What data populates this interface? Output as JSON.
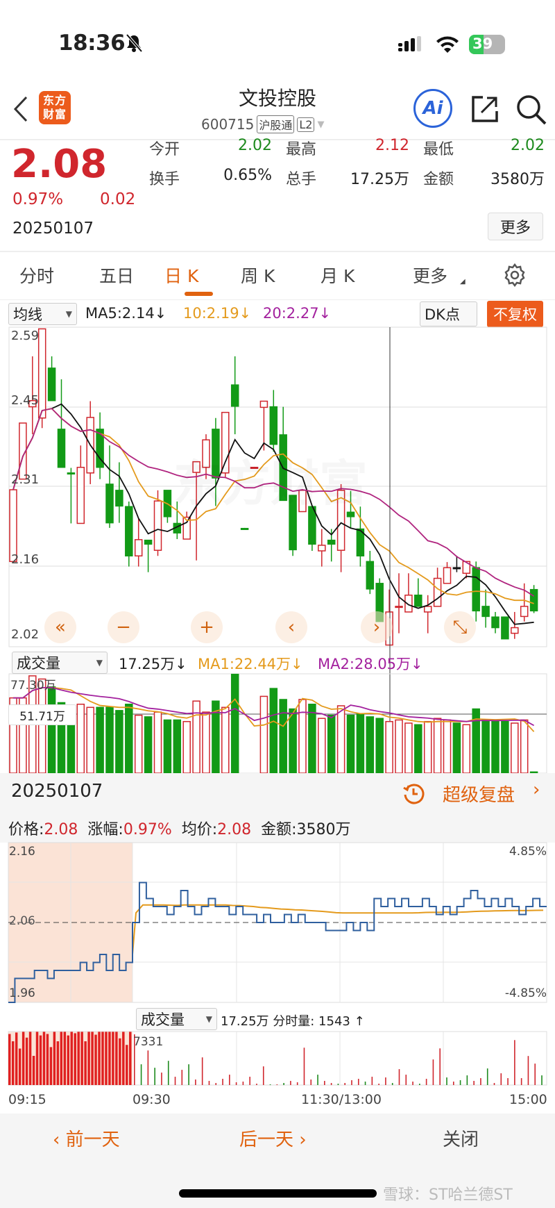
{
  "status_bar": {
    "time": "18:36",
    "battery": "39",
    "icons": [
      "bell-slash-icon",
      "signal-icon",
      "wifi-icon",
      "battery-charging-icon"
    ]
  },
  "header": {
    "logo": "东方财富",
    "title": "文投控股",
    "code": "600715",
    "badges": [
      "沪股通",
      "L2"
    ],
    "ai_label": "Ai"
  },
  "quote": {
    "price": "2.08",
    "change_pct": "0.97%",
    "change": "0.02",
    "date": "20250107",
    "stats": [
      {
        "label": "今开",
        "value": "2.02",
        "color": "green"
      },
      {
        "label": "最高",
        "value": "2.12",
        "color": "red"
      },
      {
        "label": "最低",
        "value": "2.02",
        "color": "green"
      },
      {
        "label": "换手",
        "value": "0.65%",
        "color": "black"
      },
      {
        "label": "总手",
        "value": "17.25万",
        "color": "black"
      },
      {
        "label": "金额",
        "value": "3580万",
        "color": "black"
      }
    ],
    "more_label": "更多"
  },
  "tabs": [
    {
      "label": "分时"
    },
    {
      "label": "五日"
    },
    {
      "label": "日 K",
      "active": true
    },
    {
      "label": "周 K"
    },
    {
      "label": "月 K"
    },
    {
      "label": "更多"
    }
  ],
  "ma_bar": {
    "selector": "均线",
    "ma5": "MA5:2.14↓",
    "ma10": "10:2.19↓",
    "ma20": "20:2.27↓",
    "dk": "DK点",
    "adjust": "不复权"
  },
  "kline": {
    "watermark": "东方财富",
    "y_labels": [
      "2.59",
      "2.45",
      "2.31",
      "2.16",
      "2.02"
    ],
    "ylim": [
      2.02,
      2.59
    ],
    "candles": [
      [
        2.172,
        2.3,
        2.172,
        2.3
      ],
      [
        2.319,
        2.419,
        2.319,
        2.419
      ],
      [
        2.448,
        2.538,
        2.399,
        2.459
      ],
      [
        2.428,
        2.587,
        2.41,
        2.587
      ],
      [
        2.517,
        2.538,
        2.459,
        2.459
      ],
      [
        2.408,
        2.497,
        2.34,
        2.34
      ],
      [
        2.33,
        2.339,
        2.24,
        2.33
      ],
      [
        2.24,
        2.379,
        2.24,
        2.34
      ],
      [
        2.33,
        2.458,
        2.31,
        2.429
      ],
      [
        2.408,
        2.438,
        2.319,
        2.34
      ],
      [
        2.31,
        2.379,
        2.232,
        2.241
      ],
      [
        2.299,
        2.349,
        2.241,
        2.271
      ],
      [
        2.27,
        2.279,
        2.163,
        2.182
      ],
      [
        2.182,
        2.248,
        2.163,
        2.211
      ],
      [
        2.21,
        2.21,
        2.153,
        2.203
      ],
      [
        2.192,
        2.299,
        2.182,
        2.28
      ],
      [
        2.299,
        2.299,
        2.241,
        2.252
      ],
      [
        2.24,
        2.279,
        2.212,
        2.223
      ],
      [
        2.212,
        2.261,
        2.212,
        2.251
      ],
      [
        2.331,
        2.35,
        2.174,
        2.35
      ],
      [
        2.34,
        2.399,
        2.319,
        2.389
      ],
      [
        2.408,
        2.428,
        2.271,
        2.321
      ],
      [
        2.33,
        2.438,
        2.321,
        2.438
      ],
      [
        2.487,
        2.538,
        2.399,
        2.449
      ],
      [
        2.231,
        2.232,
        2.23,
        2.231
      ],
      [
        2.34,
        2.341,
        2.339,
        2.34
      ],
      [
        2.447,
        2.458,
        2.37,
        2.458
      ],
      [
        2.448,
        2.478,
        2.368,
        2.381
      ],
      [
        2.398,
        2.448,
        2.281,
        2.281
      ],
      [
        2.29,
        2.29,
        2.182,
        2.193
      ],
      [
        2.261,
        2.299,
        2.261,
        2.299
      ],
      [
        2.27,
        2.27,
        2.191,
        2.203
      ],
      [
        2.191,
        2.23,
        2.163,
        2.201
      ],
      [
        2.21,
        2.23,
        2.172,
        2.203
      ],
      [
        2.192,
        2.31,
        2.153,
        2.299
      ],
      [
        2.26,
        2.298,
        2.232,
        2.252
      ],
      [
        2.23,
        2.27,
        2.163,
        2.182
      ],
      [
        2.172,
        2.191,
        2.114,
        2.123
      ],
      [
        2.133,
        2.142,
        2.065,
        2.065
      ],
      [
        2.023,
        2.122,
        2.023,
        2.082
      ],
      [
        2.092,
        2.151,
        2.044,
        2.092
      ],
      [
        2.082,
        2.151,
        2.082,
        2.112
      ],
      [
        2.112,
        2.142,
        2.092,
        2.092
      ],
      [
        2.082,
        2.112,
        2.044,
        2.092
      ],
      [
        2.092,
        2.161,
        2.092,
        2.142
      ],
      [
        2.133,
        2.171,
        2.133,
        2.161
      ],
      [
        2.161,
        2.182,
        2.153,
        2.161
      ],
      [
        2.151,
        2.172,
        2.142,
        2.172
      ],
      [
        2.161,
        2.172,
        2.065,
        2.084
      ],
      [
        2.092,
        2.122,
        2.054,
        2.074
      ],
      [
        2.073,
        2.082,
        2.044,
        2.054
      ],
      [
        2.073,
        2.073,
        2.034,
        2.034
      ],
      [
        2.044,
        2.082,
        2.034,
        2.054
      ],
      [
        2.074,
        2.133,
        2.065,
        2.092
      ],
      [
        2.122,
        2.13,
        2.08,
        2.084
      ]
    ],
    "nav_buttons": [
      "«",
      "−",
      "+",
      "‹",
      "›",
      "⤡"
    ],
    "colors": {
      "up": "#d0262d",
      "down": "#129a16",
      "ma5": "#111111",
      "ma10": "#e49a1c",
      "ma20": "#b0247f"
    }
  },
  "volume": {
    "selector": "成交量",
    "current": "17.25万↓",
    "ma1": "MA1:22.44万↓",
    "ma2": "MA2:28.05万↓",
    "top_label": "77.30万",
    "cursor_label": "51.71万",
    "values": [
      62,
      62,
      76,
      74,
      69,
      59,
      57,
      58,
      56,
      56,
      56,
      54,
      58,
      51,
      50,
      53,
      48,
      48,
      47,
      60,
      53,
      60,
      56,
      77,
      14,
      14,
      63,
      68,
      61,
      55,
      61,
      58,
      49,
      51,
      57,
      51,
      52,
      50,
      49,
      47,
      48,
      46,
      45,
      47,
      49,
      48,
      46,
      45,
      55,
      48,
      47,
      47,
      46,
      48,
      15
    ]
  },
  "intraday": {
    "date": "20250107",
    "replay_label": "超级复盘",
    "info": [
      {
        "label": "价格:",
        "value": "2.08"
      },
      {
        "label": "涨幅:",
        "value": "0.97%"
      },
      {
        "label": "均价:",
        "value": "2.08"
      },
      {
        "label": "金额:",
        "value": "3580万",
        "plain": true
      }
    ],
    "y_left": [
      "2.16",
      "2.06",
      "1.96"
    ],
    "y_right": [
      "4.85%",
      "-4.85%"
    ],
    "prev_close": 2.06,
    "ylim": [
      1.96,
      2.16
    ],
    "premarket": [
      1.96,
      1.99,
      1.99,
      1.99,
      2.0,
      2.0,
      1.99,
      2.0,
      2.0,
      2.0,
      2.0,
      2.01,
      2.0,
      2.01,
      2.02,
      2.0,
      2.02,
      2.0,
      2.01
    ],
    "prices": [
      2.06,
      2.11,
      2.09,
      2.08,
      2.08,
      2.07,
      2.08,
      2.1,
      2.08,
      2.07,
      2.08,
      2.09,
      2.08,
      2.08,
      2.07,
      2.08,
      2.07,
      2.07,
      2.06,
      2.07,
      2.06,
      2.06,
      2.07,
      2.06,
      2.07,
      2.06,
      2.06,
      2.06,
      2.05,
      2.05,
      2.05,
      2.06,
      2.05,
      2.06,
      2.05,
      2.09,
      2.08,
      2.09,
      2.08,
      2.09,
      2.08,
      2.08,
      2.09,
      2.08,
      2.07,
      2.08,
      2.07,
      2.08,
      2.09,
      2.1,
      2.09,
      2.08,
      2.09,
      2.08,
      2.09,
      2.08,
      2.07,
      2.08,
      2.09,
      2.08
    ],
    "vol_selector": "成交量",
    "vol_text": "17.25万 分时量: 1543 ↑",
    "vol_max_label": "7331",
    "premarket_volumes": [
      7000,
      6000,
      7200,
      5000,
      7300,
      6500,
      7300,
      4000,
      7300,
      6800,
      7300,
      7000,
      5200,
      7300,
      6000,
      7300,
      7300,
      6800,
      7300,
      7100,
      7300,
      7300,
      6000,
      7300,
      7300,
      6900,
      7300,
      7300,
      7300,
      7300,
      7300,
      7300,
      6400,
      7300,
      5500,
      7300
    ],
    "volumes": [
      [
        7331,
        "r"
      ],
      [
        3000,
        "g"
      ],
      [
        5000,
        "r"
      ],
      [
        2500,
        "g"
      ],
      [
        1800,
        "r"
      ],
      [
        3500,
        "g"
      ],
      [
        1200,
        "r"
      ],
      [
        2200,
        "r"
      ],
      [
        3000,
        "g"
      ],
      [
        800,
        "r"
      ],
      [
        4000,
        "r"
      ],
      [
        600,
        "r"
      ],
      [
        300,
        "r"
      ],
      [
        900,
        "r"
      ],
      [
        1500,
        "r"
      ],
      [
        400,
        "r"
      ],
      [
        500,
        "r"
      ],
      [
        1200,
        "r"
      ],
      [
        200,
        "r"
      ],
      [
        2700,
        "r"
      ],
      [
        100,
        "g"
      ],
      [
        100,
        "r"
      ],
      [
        300,
        "g"
      ],
      [
        600,
        "r"
      ],
      [
        400,
        "r"
      ],
      [
        5400,
        "r"
      ],
      [
        800,
        "r"
      ],
      [
        1500,
        "g"
      ],
      [
        600,
        "r"
      ],
      [
        300,
        "r"
      ],
      [
        200,
        "g"
      ],
      [
        300,
        "r"
      ],
      [
        700,
        "r"
      ],
      [
        900,
        "r"
      ],
      [
        500,
        "g"
      ],
      [
        1200,
        "r"
      ],
      [
        200,
        "r"
      ],
      [
        1100,
        "r"
      ],
      [
        300,
        "g"
      ],
      [
        2300,
        "r"
      ],
      [
        1500,
        "r"
      ],
      [
        500,
        "r"
      ],
      [
        200,
        "g"
      ],
      [
        900,
        "r"
      ],
      [
        3700,
        "r"
      ],
      [
        5300,
        "r"
      ],
      [
        1100,
        "g"
      ],
      [
        500,
        "r"
      ],
      [
        700,
        "g"
      ],
      [
        1400,
        "g"
      ],
      [
        600,
        "r"
      ],
      [
        1000,
        "r"
      ],
      [
        2400,
        "g"
      ],
      [
        300,
        "r"
      ],
      [
        1700,
        "r"
      ],
      [
        1000,
        "r"
      ],
      [
        6500,
        "r"
      ],
      [
        1000,
        "r"
      ],
      [
        4200,
        "r"
      ],
      [
        3100,
        "r"
      ],
      [
        1400,
        "g"
      ]
    ],
    "time_labels": [
      "09:15",
      "09:30",
      "11:30/13:00",
      "15:00"
    ]
  },
  "footer": {
    "prev_day": "前一天",
    "next_day": "后一天",
    "close": "关闭",
    "watermark": "雪球：ST哈兰德ST"
  }
}
